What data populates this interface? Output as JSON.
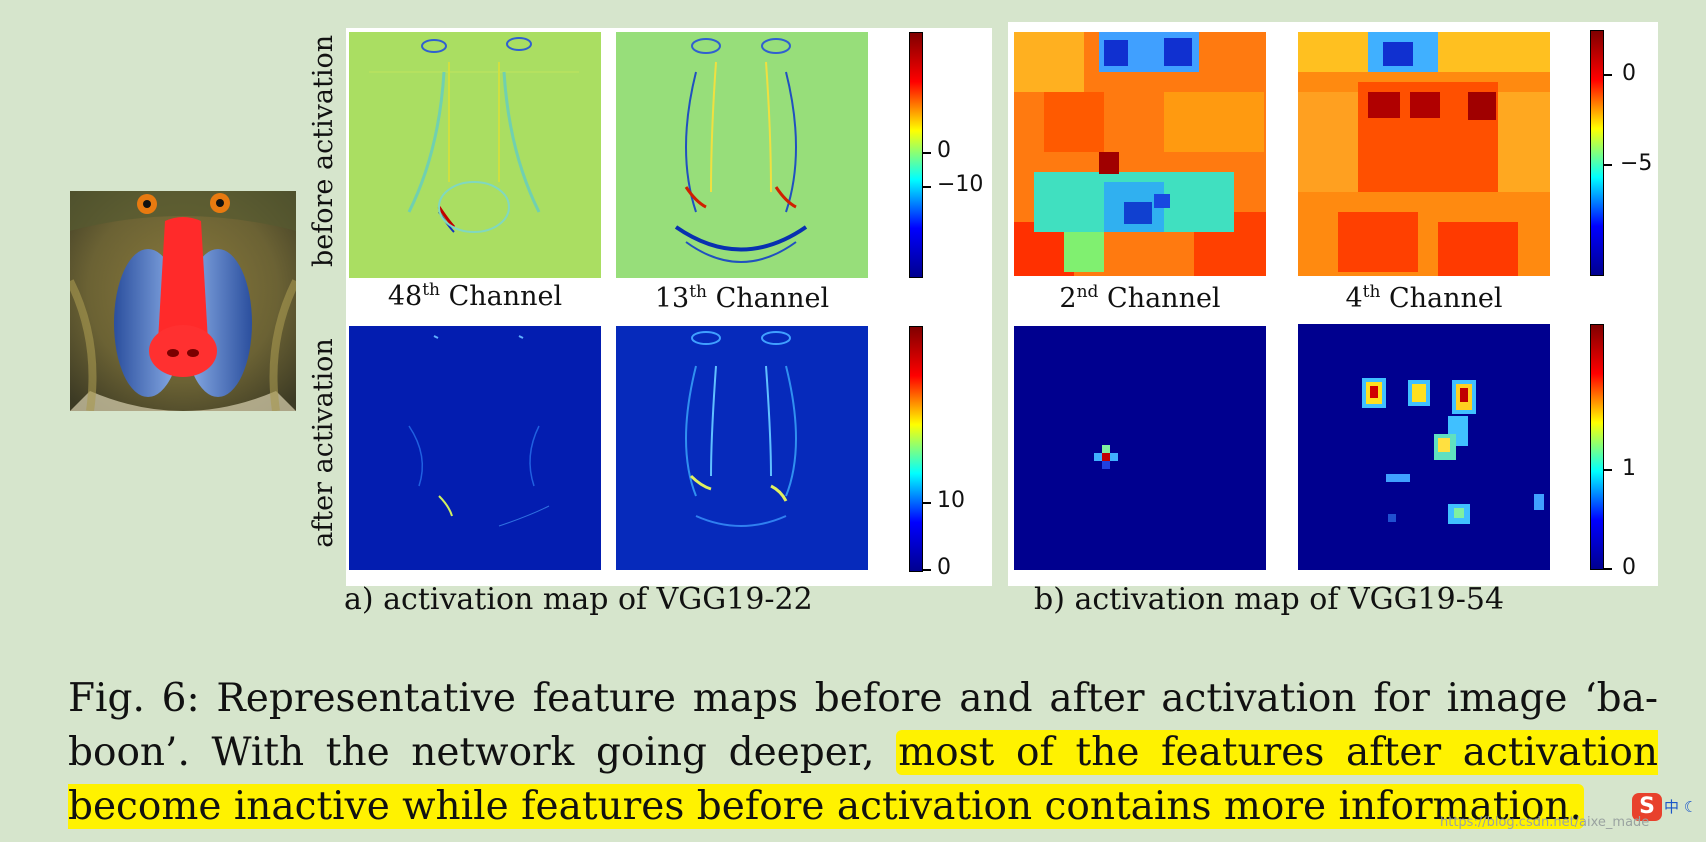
{
  "figure": {
    "row_labels": [
      "before activation",
      "after activation"
    ],
    "panel_a": {
      "channels": [
        {
          "ordinal": "48",
          "suffix": "th",
          "word": "Channel"
        },
        {
          "ordinal": "13",
          "suffix": "th",
          "word": "Channel"
        }
      ],
      "colorbar_before_ticks": [
        "0",
        "−10"
      ],
      "colorbar_after_ticks": [
        "10",
        "0"
      ],
      "caption": "a) activation map of  VGG19-22"
    },
    "panel_b": {
      "channels": [
        {
          "ordinal": "2",
          "suffix": "nd",
          "word": "Channel"
        },
        {
          "ordinal": "4",
          "suffix": "th",
          "word": "Channel"
        }
      ],
      "colorbar_before_ticks": [
        "0",
        "−5"
      ],
      "colorbar_after_ticks": [
        "1",
        "0"
      ],
      "caption": "b) activation map of  VGG19-54"
    }
  },
  "caption": {
    "lead": "Fig. 6: Representative feature maps before and after activation for image ‘ba-boon’. With the network going deeper, ",
    "highlight": "most of the features after activation become inactive while features before activation contains more information."
  },
  "overlay": {
    "ime_badge": "S",
    "ime_text": "中 ☾",
    "watermark": "https://blog.csdn.net/aixe_made"
  },
  "colors": {
    "background": "#d6e5cc",
    "highlight": "#fff200",
    "jet_low": "#00008f",
    "jet_high": "#800000"
  },
  "icons": [
    "baboon-image",
    "jet-colorbar"
  ]
}
